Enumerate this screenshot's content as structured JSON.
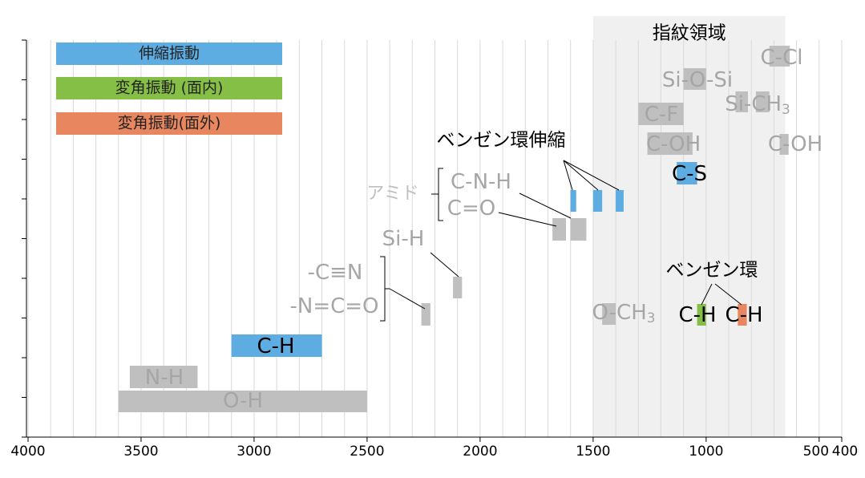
{
  "chart_data": {
    "type": "range",
    "xlim": [
      4000,
      400
    ],
    "xticks": [
      4000,
      3500,
      3000,
      2500,
      2000,
      1500,
      1000,
      500,
      400
    ],
    "grid": true,
    "grid_step": 100,
    "region": {
      "from": 1500,
      "to": 650,
      "label": "指紋領域",
      "color": "#f0f0f0"
    },
    "series": [
      {
        "name": "伸縮振動",
        "color": "#5dade2"
      },
      {
        "name": "変角振動 (面内)",
        "color": "#86bf45"
      },
      {
        "name": "変角振動(面外)",
        "color": "#e8875f"
      }
    ],
    "bands": [
      {
        "from": 3600,
        "to": 2500,
        "color": "#bfbfbf"
      },
      {
        "from": 3550,
        "to": 3250,
        "color": "#bfbfbf"
      },
      {
        "from": 3100,
        "to": 2700,
        "color": "#5dade2"
      },
      {
        "from": 2260,
        "to": 2220,
        "color": "#bfbfbf"
      },
      {
        "from": 2120,
        "to": 2080,
        "color": "#bfbfbf"
      },
      {
        "from": 1680,
        "to": 1620,
        "color": "#bfbfbf"
      },
      {
        "from": 1600,
        "to": 1530,
        "color": "#bfbfbf"
      },
      {
        "from": 1600,
        "to": 1575,
        "color": "#5dade2"
      },
      {
        "from": 1500,
        "to": 1460,
        "color": "#5dade2"
      },
      {
        "from": 1400,
        "to": 1365,
        "color": "#5dade2"
      },
      {
        "from": 1130,
        "to": 1040,
        "color": "#5dade2"
      },
      {
        "from": 720,
        "to": 630,
        "color": "#bfbfbf"
      },
      {
        "from": 1100,
        "to": 1000,
        "color": "#bfbfbf"
      },
      {
        "from": 870,
        "to": 815,
        "color": "#bfbfbf"
      },
      {
        "from": 780,
        "to": 720,
        "color": "#bfbfbf"
      },
      {
        "from": 1300,
        "to": 1100,
        "color": "#bfbfbf"
      },
      {
        "from": 1260,
        "to": 1060,
        "color": "#bfbfbf"
      },
      {
        "from": 675,
        "to": 635,
        "color": "#bfbfbf"
      },
      {
        "from": 1460,
        "to": 1400,
        "color": "#bfbfbf"
      },
      {
        "from": 1040,
        "to": 1000,
        "color": "#86bf45"
      },
      {
        "from": 860,
        "to": 820,
        "color": "#e8875f"
      }
    ],
    "labels": [
      {
        "text": "C-Cl",
        "color": "#a6a6a6"
      },
      {
        "text": "Si-O-Si",
        "color": "#a6a6a6"
      },
      {
        "text": "Si-CH",
        "sub": "3",
        "color": "#a6a6a6"
      },
      {
        "text": "C-F",
        "color": "#a6a6a6"
      },
      {
        "text": "ベンゼン環伸縮",
        "color": "#000000"
      },
      {
        "text": "C-OH",
        "color": "#a6a6a6"
      },
      {
        "text": "C-OH",
        "color": "#a6a6a6"
      },
      {
        "text": "C-S",
        "color": "#000000"
      },
      {
        "text": "アミド",
        "color": "#bfbfbf"
      },
      {
        "text": "C-N-H",
        "color": "#a6a6a6"
      },
      {
        "text": "C=O",
        "color": "#a6a6a6"
      },
      {
        "text": "Si-H",
        "color": "#a6a6a6"
      },
      {
        "text": "-C≡N",
        "color": "#a6a6a6"
      },
      {
        "text": "-N=C=O",
        "color": "#a6a6a6"
      },
      {
        "text": "O-CH",
        "sub": "3",
        "color": "#a6a6a6"
      },
      {
        "text": "ベンゼン環",
        "color": "#000000"
      },
      {
        "text": "C-H",
        "color": "#000000"
      },
      {
        "text": "C-H",
        "color": "#000000"
      },
      {
        "text": "C-H",
        "color": "#000000"
      },
      {
        "text": "N-H",
        "color": "#a6a6a6"
      },
      {
        "text": "O-H",
        "color": "#a6a6a6"
      }
    ]
  }
}
